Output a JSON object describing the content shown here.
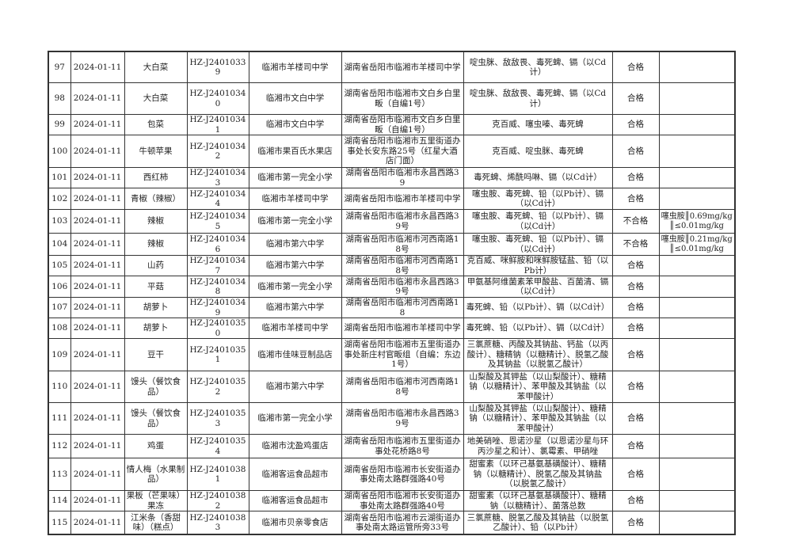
{
  "rows": [
    {
      "no": "97",
      "date": "2024-01-11",
      "product": "大白菜",
      "code": "HZ-J24010339",
      "unit": "临湘市羊楼司中学",
      "address": "湖南省岳阳市临湘市羊楼司中学",
      "items": "啶虫脒、敌敌畏、毒死蜱、镉（以Cd计）",
      "result": "合格",
      "note": ""
    },
    {
      "no": "98",
      "date": "2024-01-11",
      "product": "大白菜",
      "code": "HZ-J24010340",
      "unit": "临湘市文白中学",
      "address": "湖南省岳阳市临湘市文白乡白里畈（自编1号）",
      "items": "啶虫脒、敌敌畏、毒死蜱、镉（以Cd计）",
      "result": "合格",
      "note": ""
    },
    {
      "no": "99",
      "date": "2024-01-11",
      "product": "包菜",
      "code": "HZ-J24010341",
      "unit": "临湘市文白中学",
      "address": "湖南省岳阳市临湘市文白乡白里畈（自编1号）",
      "items": "克百威、噻虫嗪、毒死蜱",
      "result": "合格",
      "note": ""
    },
    {
      "no": "100",
      "date": "2024-01-11",
      "product": "牛顿苹果",
      "code": "HZ-J24010342",
      "unit": "临湘市果百氏水果店",
      "address": "湖南省岳阳市临湘市五里街道办事处长安东路25号（红星大酒店门面）",
      "items": "克百威、啶虫脒、毒死蜱",
      "result": "合格",
      "note": ""
    },
    {
      "no": "101",
      "date": "2024-01-11",
      "product": "西红柿",
      "code": "HZ-J24010343",
      "unit": "临湘市第一完全小学",
      "address": "湖南省岳阳市临湘市永昌西路39",
      "items": "毒死蜱、烯酰吗啉、镉（以Cd计）",
      "result": "合格",
      "note": ""
    },
    {
      "no": "102",
      "date": "2024-01-11",
      "product": "青椒（辣椒）",
      "code": "HZ-J24010344",
      "unit": "临湘市羊楼司中学",
      "address": "湖南省岳阳市临湘市羊楼司中学",
      "items": "噻虫胺、毒死蜱、铅（以Pb计）、镉（以Cd计）",
      "result": "合格",
      "note": ""
    },
    {
      "no": "103",
      "date": "2024-01-11",
      "product": "辣椒",
      "code": "HZ-J24010345",
      "unit": "临湘市第一完全小学",
      "address": "湖南省岳阳市临湘市永昌西路39号",
      "items": "噻虫胺、毒死蜱、铅（以Pb计）、镉（以Cd计）",
      "result": "不合格",
      "note": "噻虫胺║0.69mg/kg ║≤0.01mg/kg"
    },
    {
      "no": "104",
      "date": "2024-01-11",
      "product": "辣椒",
      "code": "HZ-J24010346",
      "unit": "临湘市第六中学",
      "address": "湖南省岳阳市临湘市河西南路18号",
      "items": "噻虫胺、毒死蜱、铅（以Pb计）、镉（以Cd计）",
      "result": "不合格",
      "note": "噻虫胺║0.21mg/kg ║≤0.01mg/kg"
    },
    {
      "no": "105",
      "date": "2024-01-11",
      "product": "山药",
      "code": "HZ-J24010347",
      "unit": "临湘市第六中学",
      "address": "湖南省岳阳市临湘市河西南路18号",
      "items": "克百威、咪鲜胺和咪鲜胺锰盐、铅（以Pb计）",
      "result": "合格",
      "note": ""
    },
    {
      "no": "106",
      "date": "2024-01-11",
      "product": "平菇",
      "code": "HZ-J24010348",
      "unit": "临湘市第一完全小学",
      "address": "湖南省岳阳市临湘市永昌西路39号",
      "items": "甲氨基阿维菌素苯甲酸盐、百菌清、镉（以Cd计）",
      "result": "合格",
      "note": ""
    },
    {
      "no": "107",
      "date": "2024-01-11",
      "product": "胡萝卜",
      "code": "HZ-J24010349",
      "unit": "临湘市第六中学",
      "address": "湖南省岳阳市临湘市河西南路18",
      "items": "毒死蜱、铅（以Pb计）、镉（以Cd计）",
      "result": "合格",
      "note": ""
    },
    {
      "no": "108",
      "date": "2024-01-11",
      "product": "胡萝卜",
      "code": "HZ-J24010350",
      "unit": "临湘市羊楼司中学",
      "address": "湖南省岳阳市临湘市羊楼司中学",
      "items": "毒死蜱、铅（以Pb计）、镉（以Cd计）",
      "result": "合格",
      "note": ""
    },
    {
      "no": "109",
      "date": "2024-01-11",
      "product": "豆干",
      "code": "HZ-J24010351",
      "unit": "临湘市佳味豆制品店",
      "address": "湖南省岳阳市临湘市五里街道办事处新庄村官畈组（自编：东边1号）",
      "items": "三氯蔗糖、丙酸及其钠盐、钙盐（以丙酸计）、糖精钠（以糖精计）、脱氢乙酸及其钠盐（以脱氢乙酸计）",
      "result": "合格",
      "note": ""
    },
    {
      "no": "110",
      "date": "2024-01-11",
      "product": "馒头（餐饮食品）",
      "code": "HZ-J24010352",
      "unit": "临湘市第六中学",
      "address": "湖南省岳阳市临湘市河西南路18号",
      "items": "山梨酸及其钾盐（以山梨酸计）、糖精钠（以糖精计）、苯甲酸及其钠盐（以苯甲酸计）",
      "result": "合格",
      "note": ""
    },
    {
      "no": "111",
      "date": "2024-01-11",
      "product": "馒头（餐饮食品）",
      "code": "HZ-J24010353",
      "unit": "临湘市第一完全小学",
      "address": "湖南省岳阳市临湘市永昌西路39号",
      "items": "山梨酸及其钾盐（以山梨酸计）、糖精钠（以糖精计）、苯甲酸及其钠盐（以苯甲酸计）",
      "result": "合格",
      "note": ""
    },
    {
      "no": "112",
      "date": "2024-01-11",
      "product": "鸡蛋",
      "code": "HZ-J24010354",
      "unit": "临湘市沈盈鸡蛋店",
      "address": "湖南省岳阳市临湘市五里街道办事处花桥路8号",
      "items": "地美硝唑、恩诺沙星（以恩诺沙星与环丙沙星之和计）、氯霉素、甲硝唑",
      "result": "合格",
      "note": ""
    },
    {
      "no": "113",
      "date": "2024-01-11",
      "product": "情人梅（水果制品）",
      "code": "HZ-J24010381",
      "unit": "临湘客运食品超市",
      "address": "湖南省岳阳市临湘市长安街道办事处南太路群强路40号",
      "items": "甜蜜素（以环己基氨基磺酸计）、糖精钠（以糖精计）、脱氢乙酸及其钠盐（以脱氢乙酸计）",
      "result": "合格",
      "note": ""
    },
    {
      "no": "114",
      "date": "2024-01-11",
      "product": "果板（芒果味）果冻",
      "code": "HZ-J24010382",
      "unit": "临湘客运食品超市",
      "address": "湖南省岳阳市临湘市长安街道办事处南太路群强路40号",
      "items": "甜蜜素（以环己基氨基磺酸计）、糖精钠（以糖精计）、菌落总数",
      "result": "合格",
      "note": ""
    },
    {
      "no": "115",
      "date": "2024-01-11",
      "product": "江米条（香甜味）（糕点）",
      "code": "HZ-J24010383",
      "unit": "临湘市贝亲零食店",
      "address": "湖南省岳阳市临湘市云湖街道办事处南太路运管所旁33号",
      "items": "三氯蔗糖、脱氢乙酸及其钠盐（以脱氢乙酸计）、铅（以Pb计）",
      "result": "合格",
      "note": ""
    }
  ]
}
